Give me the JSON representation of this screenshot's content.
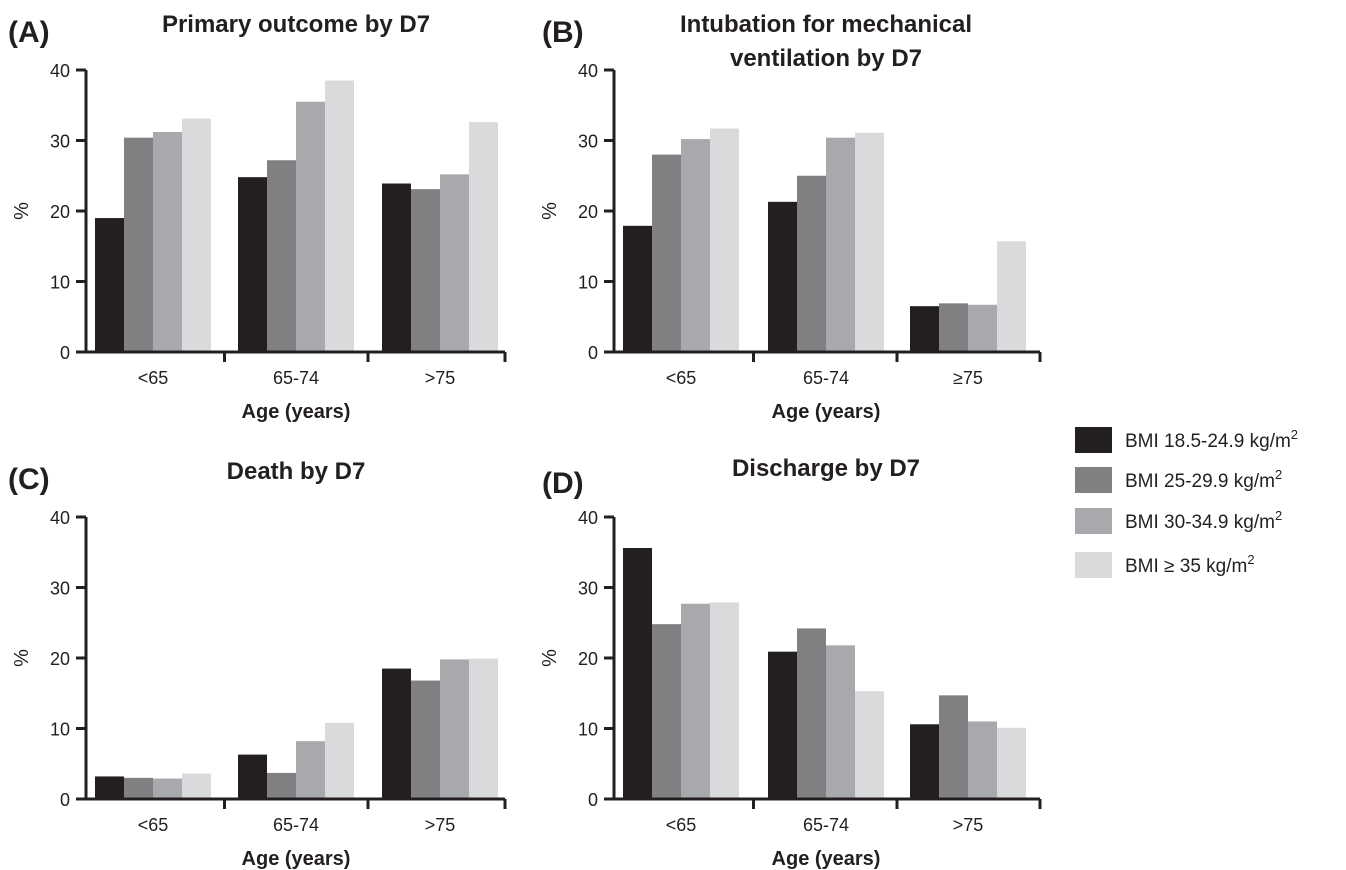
{
  "legend": {
    "items": [
      {
        "label": "BMI 18.5-24.9 kg/m",
        "sup": "2",
        "color": "#231f20"
      },
      {
        "label": "BMI 25-29.9 kg/m",
        "sup": "2",
        "color": "#808083"
      },
      {
        "label": "BMI 30-34.9 kg/m",
        "sup": "2",
        "color": "#a8a9ac"
      },
      {
        "label": "BMI ≥ 35 kg/m",
        "sup": "2",
        "color": "#d9dadb"
      }
    ]
  },
  "chart_data": [
    {
      "type": "bar",
      "panel": "(A)",
      "title": [
        "Primary outcome by D7"
      ],
      "xlabel": "Age (years)",
      "ylabel": "%",
      "ylim": [
        0,
        40
      ],
      "yticks": [
        0,
        10,
        20,
        30,
        40
      ],
      "categories": [
        "<65",
        "65-74",
        ">75"
      ],
      "series": [
        {
          "name": "BMI 18.5-24.9 kg/m2",
          "values": [
            19.0,
            24.8,
            23.9
          ]
        },
        {
          "name": "BMI 25-29.9 kg/m2",
          "values": [
            30.4,
            27.2,
            23.1
          ]
        },
        {
          "name": "BMI 30-34.9 kg/m2",
          "values": [
            31.2,
            35.5,
            25.2
          ]
        },
        {
          "name": "BMI ≥ 35 kg/m2",
          "values": [
            33.1,
            38.5,
            32.6
          ]
        }
      ]
    },
    {
      "type": "bar",
      "panel": "(B)",
      "title": [
        "Intubation for mechanical",
        "ventilation by D7"
      ],
      "xlabel": "Age (years)",
      "ylabel": "%",
      "ylim": [
        0,
        40
      ],
      "yticks": [
        0,
        10,
        20,
        30,
        40
      ],
      "categories": [
        "<65",
        "65-74",
        "≥75"
      ],
      "series": [
        {
          "name": "BMI 18.5-24.9 kg/m2",
          "values": [
            17.9,
            21.3,
            6.5
          ]
        },
        {
          "name": "BMI 25-29.9 kg/m2",
          "values": [
            28.0,
            25.0,
            6.9
          ]
        },
        {
          "name": "BMI 30-34.9 kg/m2",
          "values": [
            30.2,
            30.4,
            6.7
          ]
        },
        {
          "name": "BMI ≥ 35 kg/m2",
          "values": [
            31.7,
            31.1,
            15.7
          ]
        }
      ]
    },
    {
      "type": "bar",
      "panel": "(C)",
      "title": [
        "Death by D7"
      ],
      "xlabel": "Age (years)",
      "ylabel": "%",
      "ylim": [
        0,
        40
      ],
      "yticks": [
        0,
        10,
        20,
        30,
        40
      ],
      "categories": [
        "<65",
        "65-74",
        ">75"
      ],
      "series": [
        {
          "name": "BMI 18.5-24.9 kg/m2",
          "values": [
            3.2,
            6.3,
            18.5
          ]
        },
        {
          "name": "BMI 25-29.9 kg/m2",
          "values": [
            3.0,
            3.7,
            16.8
          ]
        },
        {
          "name": "BMI 30-34.9 kg/m2",
          "values": [
            2.9,
            8.2,
            19.8
          ]
        },
        {
          "name": "BMI ≥ 35 kg/m2",
          "values": [
            3.6,
            10.8,
            19.9
          ]
        }
      ]
    },
    {
      "type": "bar",
      "panel": "(D)",
      "title": [
        "Discharge by D7"
      ],
      "xlabel": "Age (years)",
      "ylabel": "%",
      "ylim": [
        0,
        40
      ],
      "yticks": [
        0,
        10,
        20,
        30,
        40
      ],
      "categories": [
        "<65",
        "65-74",
        ">75"
      ],
      "series": [
        {
          "name": "BMI 18.5-24.9 kg/m2",
          "values": [
            35.6,
            20.9,
            10.6
          ]
        },
        {
          "name": "BMI 25-29.9 kg/m2",
          "values": [
            24.8,
            24.2,
            14.7
          ]
        },
        {
          "name": "BMI 30-34.9 kg/m2",
          "values": [
            27.7,
            21.8,
            11.0
          ]
        },
        {
          "name": "BMI ≥ 35 kg/m2",
          "values": [
            27.9,
            15.3,
            10.1
          ]
        }
      ]
    }
  ]
}
